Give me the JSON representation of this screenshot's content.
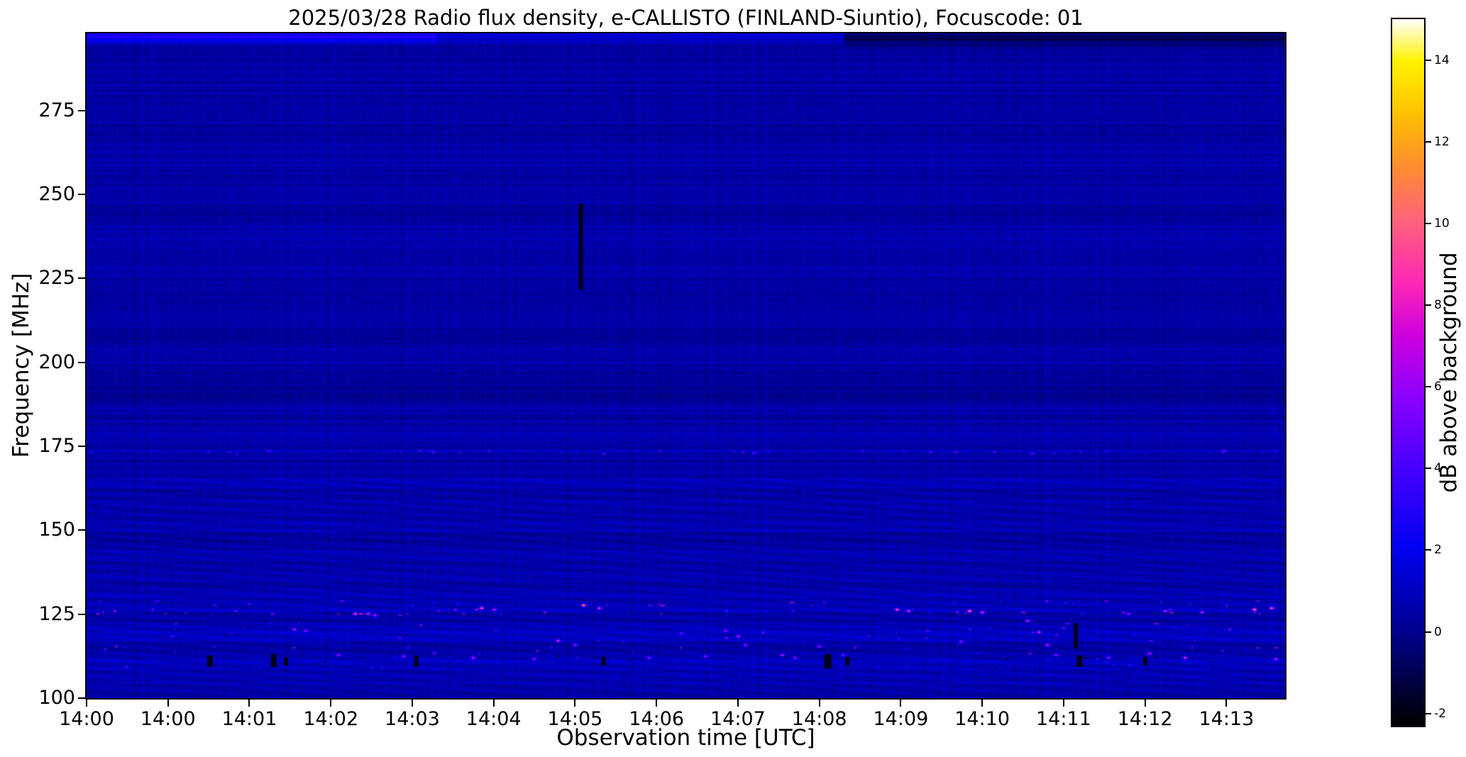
{
  "figure": {
    "title": "2025/03/28  Radio flux density, e-CALLISTO (FINLAND-Siuntio), Focuscode: 01",
    "xlabel": "Observation time [UTC]",
    "ylabel": "Frequency [MHz]",
    "colorbar_label": "dB above background"
  },
  "chart_data": {
    "type": "heatmap",
    "title": "2025/03/28  Radio flux density, e-CALLISTO (FINLAND-Siuntio), Focuscode: 01",
    "xlabel": "Observation time [UTC]",
    "ylabel": "Frequency [MHz]",
    "x_tick_labels": [
      "14:00",
      "14:00",
      "14:01",
      "14:02",
      "14:03",
      "14:04",
      "14:05",
      "14:06",
      "14:07",
      "14:08",
      "14:09",
      "14:10",
      "14:11",
      "14:12",
      "14:13"
    ],
    "y_ticks": [
      275,
      250,
      225,
      200,
      175,
      150,
      125,
      100
    ],
    "x_range_minutes": [
      0,
      14.72
    ],
    "y_range_mhz": [
      100,
      298
    ],
    "background_db": 0.45,
    "colorbar": {
      "label": "dB above background",
      "ticks": [
        -2,
        0,
        2,
        4,
        6,
        8,
        10,
        12,
        14
      ],
      "range": [
        -2.3,
        15.0
      ],
      "colormap_stops": [
        [
          0.0,
          "#000000"
        ],
        [
          0.13,
          "#00008c"
        ],
        [
          0.25,
          "#0000f0"
        ],
        [
          0.36,
          "#4400ff"
        ],
        [
          0.46,
          "#8800ff"
        ],
        [
          0.55,
          "#cc00e0"
        ],
        [
          0.63,
          "#ff2ab4"
        ],
        [
          0.72,
          "#ff6678"
        ],
        [
          0.79,
          "#ff8c30"
        ],
        [
          0.87,
          "#ffc400"
        ],
        [
          0.94,
          "#fff200"
        ],
        [
          1.0,
          "#ffffff"
        ]
      ]
    },
    "h_bands": [
      {
        "f": 297.0,
        "w": 1.2,
        "dv": 2.2,
        "t0": 0.0,
        "t1": 4.3
      },
      {
        "f": 297.0,
        "w": 1.2,
        "dv": 0.8,
        "t0": 4.3,
        "t1": 9.3
      },
      {
        "f": 296.5,
        "w": 1.5,
        "dv": -1.5,
        "t0": 9.3,
        "t1": 14.72
      },
      {
        "f": 239.0,
        "w": 7.0,
        "dv": 0.12
      },
      {
        "f": 244.0,
        "w": 2.0,
        "dv": -0.25
      },
      {
        "f": 208.0,
        "w": 2.0,
        "dv": -0.2
      },
      {
        "f": 190.5,
        "w": 2.2,
        "dv": -0.55
      },
      {
        "f": 186.0,
        "w": 1.0,
        "dv": 0.3
      },
      {
        "f": 178.5,
        "w": 0.9,
        "dv": 0.35
      },
      {
        "f": 173.3,
        "w": 0.7,
        "dv": 0.45
      },
      {
        "f": 163.5,
        "w": 1.2,
        "dv": 0.35
      },
      {
        "f": 158.0,
        "w": 1.0,
        "dv": 0.25
      },
      {
        "f": 150.5,
        "w": 1.1,
        "dv": 0.35
      },
      {
        "f": 143.0,
        "w": 1.0,
        "dv": 0.25
      },
      {
        "f": 137.0,
        "w": 1.3,
        "dv": 0.45
      },
      {
        "f": 131.0,
        "w": 1.0,
        "dv": 0.3
      },
      {
        "f": 127.0,
        "w": 1.6,
        "dv": 0.5
      },
      {
        "f": 121.0,
        "w": 1.3,
        "dv": 0.35
      },
      {
        "f": 118.0,
        "w": 1.5,
        "dv": 0.45
      },
      {
        "f": 111.5,
        "w": 1.6,
        "dv": 0.55
      },
      {
        "f": 107.0,
        "w": 1.0,
        "dv": 0.3
      },
      {
        "f": 103.5,
        "w": 1.2,
        "dv": 0.35
      }
    ],
    "ripple": {
      "f_max": 166,
      "amp": 0.28
    },
    "speckle_rows": [
      {
        "f": 173.3,
        "jitter": 0.5,
        "prob": 0.09,
        "vmin": 1.2,
        "vmax": 5.0
      },
      {
        "f": 128.2,
        "jitter": 0.8,
        "prob": 0.04,
        "vmin": 1.5,
        "vmax": 6.5
      },
      {
        "f": 125.6,
        "jitter": 0.9,
        "prob": 0.05,
        "vmin": 1.5,
        "vmax": 7.5
      },
      {
        "f": 121.0,
        "jitter": 1.4,
        "prob": 0.035,
        "vmin": 1.5,
        "vmax": 6.0
      },
      {
        "f": 117.8,
        "jitter": 1.6,
        "prob": 0.04,
        "vmin": 1.5,
        "vmax": 6.0
      },
      {
        "f": 114.3,
        "jitter": 1.2,
        "prob": 0.03,
        "vmin": 1.5,
        "vmax": 6.5
      },
      {
        "f": 111.6,
        "jitter": 0.8,
        "prob": 0.05,
        "vmin": -1.8,
        "vmax": 4.0
      },
      {
        "f": 109.3,
        "jitter": 0.7,
        "prob": 0.03,
        "vmin": 1.0,
        "vmax": 4.0
      }
    ],
    "bright_points": [
      [
        3.3,
        125,
        10
      ],
      [
        3.45,
        125,
        9
      ],
      [
        3.55,
        124.5,
        8
      ],
      [
        4.85,
        127,
        11
      ],
      [
        5.0,
        126.5,
        8
      ],
      [
        6.1,
        127.5,
        12
      ],
      [
        6.3,
        127,
        9
      ],
      [
        2.55,
        120.5,
        8
      ],
      [
        2.7,
        120,
        7
      ],
      [
        3.1,
        113,
        7
      ],
      [
        3.9,
        112.5,
        7
      ],
      [
        4.75,
        112,
        8
      ],
      [
        5.5,
        111.5,
        7
      ],
      [
        5.8,
        117,
        9
      ],
      [
        6.0,
        116,
        7
      ],
      [
        6.9,
        112,
        7
      ],
      [
        7.3,
        119,
        6
      ],
      [
        7.6,
        112.5,
        7
      ],
      [
        7.85,
        120,
        7
      ],
      [
        8.0,
        118.5,
        8
      ],
      [
        8.1,
        116,
        7
      ],
      [
        8.55,
        113,
        8
      ],
      [
        8.7,
        112,
        7
      ],
      [
        9.0,
        115.5,
        7
      ],
      [
        9.3,
        113,
        6
      ],
      [
        9.95,
        126.5,
        11
      ],
      [
        10.1,
        126,
        9
      ],
      [
        10.85,
        126,
        12
      ],
      [
        11.0,
        125.5,
        9
      ],
      [
        11.55,
        123,
        8
      ],
      [
        11.7,
        119.5,
        9
      ],
      [
        11.8,
        116,
        8
      ],
      [
        11.9,
        113,
        7
      ],
      [
        12.55,
        112,
        7
      ],
      [
        12.8,
        125,
        7
      ],
      [
        13.05,
        113.5,
        8
      ],
      [
        13.25,
        126,
        8
      ],
      [
        13.5,
        112,
        9
      ],
      [
        13.7,
        125.5,
        8
      ],
      [
        14.35,
        126.5,
        12
      ],
      [
        14.55,
        127,
        11
      ],
      [
        14.6,
        111.5,
        8
      ]
    ],
    "dark_dashes": [
      {
        "t": 6.07,
        "f0": 222,
        "f1": 247,
        "w": 0.05
      },
      {
        "t": 1.52,
        "f0": 109.5,
        "f1": 112.5,
        "w": 0.05
      },
      {
        "t": 2.3,
        "f0": 109.5,
        "f1": 113,
        "w": 0.06
      },
      {
        "t": 2.45,
        "f0": 110,
        "f1": 112,
        "w": 0.04
      },
      {
        "t": 4.05,
        "f0": 109.5,
        "f1": 112.5,
        "w": 0.05
      },
      {
        "t": 6.35,
        "f0": 110,
        "f1": 112,
        "w": 0.04
      },
      {
        "t": 9.1,
        "f0": 109,
        "f1": 113,
        "w": 0.06
      },
      {
        "t": 9.35,
        "f0": 110,
        "f1": 112,
        "w": 0.04
      },
      {
        "t": 12.2,
        "f0": 109.5,
        "f1": 112.5,
        "w": 0.05
      },
      {
        "t": 12.15,
        "f0": 115,
        "f1": 122,
        "w": 0.04
      },
      {
        "t": 13.0,
        "f0": 110,
        "f1": 112,
        "w": 0.04
      }
    ]
  }
}
